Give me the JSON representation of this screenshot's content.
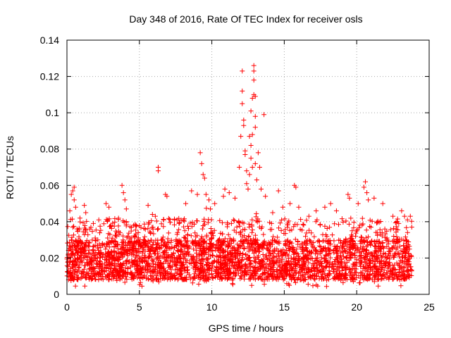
{
  "chart_data": {
    "type": "scatter",
    "title": "Day 348 of 2016, Rate Of TEC Index for receiver osls",
    "xlabel": "GPS time / hours",
    "ylabel": "ROTI / TECUs",
    "xlim": [
      0,
      25
    ],
    "ylim": [
      0,
      0.14
    ],
    "xticks": [
      0,
      5,
      10,
      15,
      20,
      25
    ],
    "xtick_labels": [
      "0",
      "5",
      "10",
      "15",
      "20",
      "25"
    ],
    "yticks": [
      0,
      0.02,
      0.04,
      0.06,
      0.08,
      0.1,
      0.12,
      0.14
    ],
    "ytick_labels": [
      "0",
      "0.02",
      "0.04",
      "0.06",
      "0.08",
      "0.1",
      "0.12",
      "0.14"
    ],
    "grid": true,
    "marker": "+",
    "color": "#ff0000",
    "series": [
      {
        "name": "ROTI",
        "x_range": [
          0,
          23.8
        ],
        "band_low": 0.008,
        "band_high": 0.03,
        "points": [
          [
            0.2,
            0.046
          ],
          [
            0.3,
            0.055
          ],
          [
            0.4,
            0.057
          ],
          [
            0.5,
            0.059
          ],
          [
            0.5,
            0.052
          ],
          [
            0.6,
            0.048
          ],
          [
            0.9,
            0.042
          ],
          [
            1.2,
            0.049
          ],
          [
            1.3,
            0.045
          ],
          [
            2.2,
            0.041
          ],
          [
            2.7,
            0.05
          ],
          [
            2.9,
            0.048
          ],
          [
            3.8,
            0.06
          ],
          [
            3.9,
            0.056
          ],
          [
            4.0,
            0.052
          ],
          [
            4.1,
            0.047
          ],
          [
            4.6,
            0.038
          ],
          [
            5.6,
            0.049
          ],
          [
            5.9,
            0.044
          ],
          [
            6.1,
            0.043
          ],
          [
            6.3,
            0.07
          ],
          [
            6.3,
            0.068
          ],
          [
            6.8,
            0.055
          ],
          [
            6.9,
            0.054
          ],
          [
            7.6,
            0.041
          ],
          [
            8.2,
            0.05
          ],
          [
            8.6,
            0.057
          ],
          [
            9.0,
            0.055
          ],
          [
            9.2,
            0.078
          ],
          [
            9.3,
            0.072
          ],
          [
            9.4,
            0.066
          ],
          [
            9.5,
            0.064
          ],
          [
            9.6,
            0.055
          ],
          [
            9.8,
            0.052
          ],
          [
            9.9,
            0.047
          ],
          [
            10.2,
            0.05
          ],
          [
            10.8,
            0.054
          ],
          [
            10.9,
            0.058
          ],
          [
            11.2,
            0.056
          ],
          [
            11.6,
            0.053
          ],
          [
            11.9,
            0.07
          ],
          [
            12.0,
            0.087
          ],
          [
            12.1,
            0.123
          ],
          [
            12.1,
            0.112
          ],
          [
            12.1,
            0.105
          ],
          [
            12.2,
            0.096
          ],
          [
            12.2,
            0.093
          ],
          [
            12.3,
            0.079
          ],
          [
            12.3,
            0.077
          ],
          [
            12.4,
            0.068
          ],
          [
            12.4,
            0.061
          ],
          [
            12.5,
            0.058
          ],
          [
            12.6,
            0.066
          ],
          [
            12.6,
            0.087
          ],
          [
            12.7,
            0.101
          ],
          [
            12.7,
            0.082
          ],
          [
            12.7,
            0.075
          ],
          [
            12.8,
            0.108
          ],
          [
            12.8,
            0.088
          ],
          [
            12.8,
            0.07
          ],
          [
            12.9,
            0.126
          ],
          [
            12.9,
            0.123
          ],
          [
            12.9,
            0.118
          ],
          [
            12.9,
            0.11
          ],
          [
            13.0,
            0.109
          ],
          [
            13.0,
            0.098
          ],
          [
            13.0,
            0.092
          ],
          [
            13.0,
            0.072
          ],
          [
            13.1,
            0.063
          ],
          [
            13.2,
            0.078
          ],
          [
            13.3,
            0.07
          ],
          [
            13.4,
            0.058
          ],
          [
            13.6,
            0.099
          ],
          [
            13.7,
            0.054
          ],
          [
            14.2,
            0.045
          ],
          [
            14.6,
            0.057
          ],
          [
            14.9,
            0.048
          ],
          [
            15.4,
            0.05
          ],
          [
            15.7,
            0.06
          ],
          [
            15.8,
            0.059
          ],
          [
            16.0,
            0.048
          ],
          [
            16.7,
            0.043
          ],
          [
            17.2,
            0.046
          ],
          [
            17.8,
            0.048
          ],
          [
            18.2,
            0.05
          ],
          [
            18.6,
            0.046
          ],
          [
            19.4,
            0.055
          ],
          [
            19.5,
            0.053
          ],
          [
            20.1,
            0.05
          ],
          [
            20.5,
            0.059
          ],
          [
            20.6,
            0.062
          ],
          [
            20.7,
            0.056
          ],
          [
            20.8,
            0.052
          ],
          [
            21.2,
            0.053
          ],
          [
            21.8,
            0.05
          ],
          [
            22.5,
            0.043
          ],
          [
            22.9,
            0.039
          ],
          [
            23.1,
            0.046
          ],
          [
            23.3,
            0.043
          ],
          [
            23.5,
            0.041
          ],
          [
            23.7,
            0.043
          ]
        ]
      }
    ]
  }
}
